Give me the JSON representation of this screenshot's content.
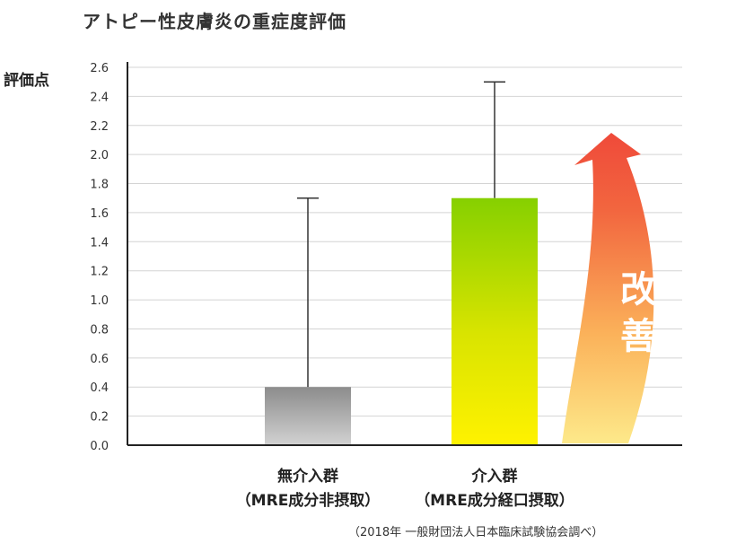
{
  "chart_data": {
    "type": "bar",
    "title": "アトピー性皮膚炎の重症度評価",
    "ylabel": "評価点",
    "xlabel": "",
    "ylim": [
      0,
      2.6
    ],
    "yticks": [
      "0.0",
      "0.2",
      "0.4",
      "0.6",
      "0.8",
      "1.0",
      "1.2",
      "1.4",
      "1.6",
      "1.8",
      "2.0",
      "2.2",
      "2.4",
      "2.6"
    ],
    "categories": [
      {
        "label": "無介入群",
        "sublabel": "（MRE成分非摂取）"
      },
      {
        "label": "介入群",
        "sublabel": "（MRE成分経口摂取）"
      }
    ],
    "values": [
      0.4,
      1.7
    ],
    "error_upper": [
      1.7,
      2.5
    ],
    "bar_colors": [
      "#9a9a9a",
      "#8fd400"
    ],
    "annotation": {
      "text": "改善",
      "chars": [
        "改",
        "善"
      ],
      "arrow_color": "#f05a40"
    },
    "grid": true,
    "source_note": "（2018年 一般財団法人日本臨床試験協会調べ）"
  }
}
